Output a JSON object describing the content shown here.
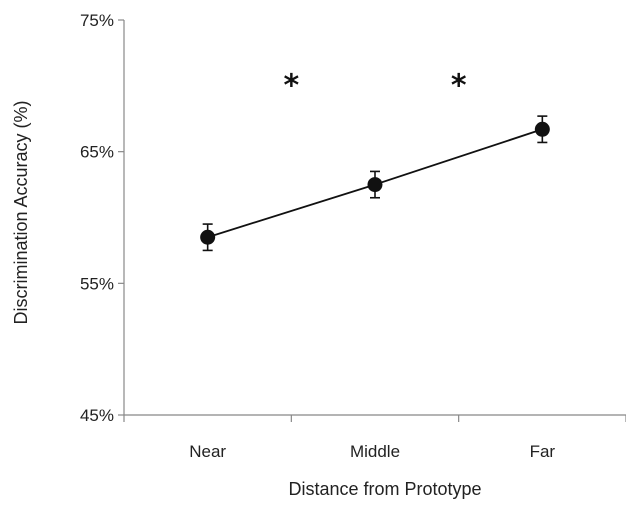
{
  "chart_data": {
    "type": "line",
    "title": "",
    "xlabel": "Distance from Prototype",
    "ylabel": "Discrimination Accuracy (%)",
    "categories": [
      "Near",
      "Middle",
      "Far"
    ],
    "series": [
      {
        "values": [
          58.5,
          62.5,
          66.7
        ],
        "error": [
          1.0,
          1.0,
          1.0
        ]
      }
    ],
    "ylim": [
      45,
      75
    ],
    "yticks": [
      45,
      55,
      65,
      75
    ],
    "ytick_labels": [
      "45%",
      "55%",
      "65%",
      "75%"
    ],
    "grid": false,
    "legend": "none",
    "annotations": [
      {
        "text": "*",
        "between": [
          "Near",
          "Middle"
        ],
        "y": 70.5
      },
      {
        "text": "*",
        "between": [
          "Middle",
          "Far"
        ],
        "y": 70.5
      }
    ],
    "colors": {
      "line": "#111111",
      "marker": "#111111",
      "axis": "#888888"
    }
  }
}
